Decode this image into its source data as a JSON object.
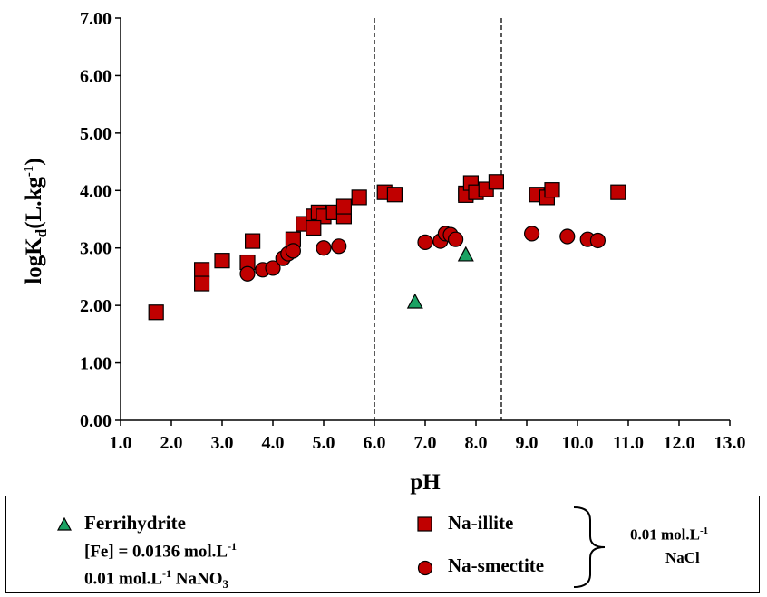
{
  "chart_data": {
    "type": "scatter",
    "xlabel": "pH",
    "ylabel_main": "logK",
    "ylabel_sub": "d",
    "ylabel_units": "(L.kg",
    "ylabel_sup": "-1",
    "ylabel_close": ")",
    "xlim": [
      1.0,
      13.0
    ],
    "ylim": [
      0.0,
      7.0
    ],
    "xticks": [
      "1.0",
      "2.0",
      "3.0",
      "4.0",
      "5.0",
      "6.0",
      "7.0",
      "8.0",
      "9.0",
      "10.0",
      "11.0",
      "12.0",
      "13.0"
    ],
    "yticks": [
      "0.00",
      "1.00",
      "2.00",
      "3.00",
      "4.00",
      "5.00",
      "6.00",
      "7.00"
    ],
    "vlines": [
      6.0,
      8.5
    ],
    "grid": false,
    "series": [
      {
        "name": "Na-illite",
        "marker": "square",
        "color": "#c00000",
        "points": [
          [
            1.7,
            1.88
          ],
          [
            2.6,
            2.62
          ],
          [
            2.6,
            2.38
          ],
          [
            3.0,
            2.78
          ],
          [
            3.6,
            3.12
          ],
          [
            3.5,
            2.75
          ],
          [
            4.4,
            3.15
          ],
          [
            4.6,
            3.42
          ],
          [
            4.8,
            3.55
          ],
          [
            4.9,
            3.62
          ],
          [
            5.0,
            3.55
          ],
          [
            4.8,
            3.35
          ],
          [
            5.2,
            3.62
          ],
          [
            5.4,
            3.55
          ],
          [
            5.4,
            3.72
          ],
          [
            5.7,
            3.88
          ],
          [
            6.2,
            3.97
          ],
          [
            6.4,
            3.93
          ],
          [
            7.8,
            3.95
          ],
          [
            7.8,
            3.92
          ],
          [
            7.9,
            4.13
          ],
          [
            8.0,
            3.97
          ],
          [
            8.2,
            4.02
          ],
          [
            8.4,
            4.15
          ],
          [
            9.2,
            3.93
          ],
          [
            9.4,
            3.88
          ],
          [
            9.5,
            4.01
          ],
          [
            10.8,
            3.97
          ]
        ]
      },
      {
        "name": "Na-smectite",
        "marker": "circle",
        "color": "#c00000",
        "points": [
          [
            3.5,
            2.55
          ],
          [
            3.8,
            2.62
          ],
          [
            4.0,
            2.65
          ],
          [
            4.2,
            2.82
          ],
          [
            4.3,
            2.9
          ],
          [
            4.4,
            2.95
          ],
          [
            5.0,
            3.0
          ],
          [
            5.3,
            3.03
          ],
          [
            7.0,
            3.1
          ],
          [
            7.3,
            3.12
          ],
          [
            7.4,
            3.25
          ],
          [
            7.5,
            3.23
          ],
          [
            7.6,
            3.15
          ],
          [
            9.1,
            3.25
          ],
          [
            9.8,
            3.2
          ],
          [
            10.2,
            3.15
          ],
          [
            10.4,
            3.13
          ]
        ]
      },
      {
        "name": "Ferrihydrite",
        "marker": "triangle",
        "color": "#1aa263",
        "points": [
          [
            6.8,
            2.05
          ],
          [
            7.8,
            2.87
          ]
        ]
      }
    ]
  },
  "legend": {
    "ferrihydrite_label": "Ferrihydrite",
    "fe_conc_prefix": "[Fe] = 0.0136 mol.L",
    "fe_conc_sup": "-1",
    "nano3_prefix": "0.01 mol.L",
    "nano3_sup": "-1",
    "nano3_suffix": " NaNO",
    "nano3_sub": "3",
    "illite_label": "Na-illite",
    "smectite_label": "Na-smectite",
    "nacl_line1_prefix": "0.01 mol.L",
    "nacl_line1_sup": "-1",
    "nacl_line2": "NaCl"
  }
}
